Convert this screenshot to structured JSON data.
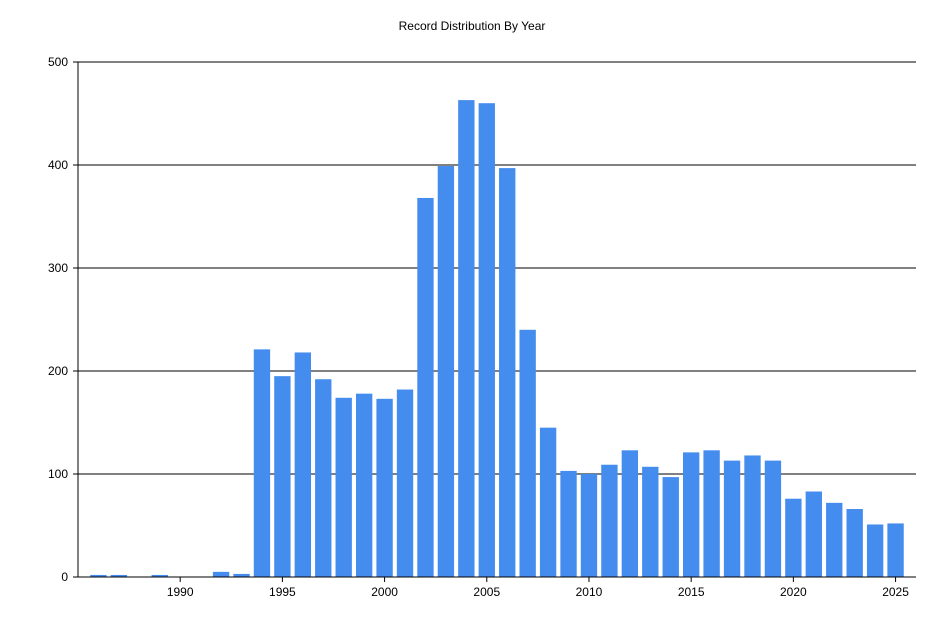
{
  "chart_data": {
    "type": "bar",
    "title": "Record Distribution By Year",
    "xlabel": "",
    "ylabel": "",
    "x_range": [
      1985,
      2026
    ],
    "ylim": [
      0,
      500
    ],
    "y_ticks": [
      0,
      100,
      200,
      300,
      400,
      500
    ],
    "x_ticks": [
      1990,
      1995,
      2000,
      2005,
      2010,
      2015,
      2020,
      2025
    ],
    "grid": "horizontal",
    "legend": "none",
    "bar_color": "#448cee",
    "x": [
      1986,
      1987,
      1989,
      1992,
      1993,
      1994,
      1995,
      1996,
      1997,
      1998,
      1999,
      2000,
      2001,
      2002,
      2003,
      2004,
      2005,
      2006,
      2007,
      2008,
      2009,
      2010,
      2011,
      2012,
      2013,
      2014,
      2015,
      2016,
      2017,
      2018,
      2019,
      2020,
      2021,
      2022,
      2023,
      2024,
      2025
    ],
    "values": [
      2,
      2,
      2,
      5,
      3,
      221,
      195,
      218,
      192,
      174,
      178,
      173,
      182,
      368,
      399,
      463,
      460,
      397,
      240,
      145,
      103,
      100,
      109,
      123,
      107,
      97,
      121,
      123,
      113,
      118,
      113,
      76,
      83,
      72,
      66,
      51,
      52
    ]
  }
}
